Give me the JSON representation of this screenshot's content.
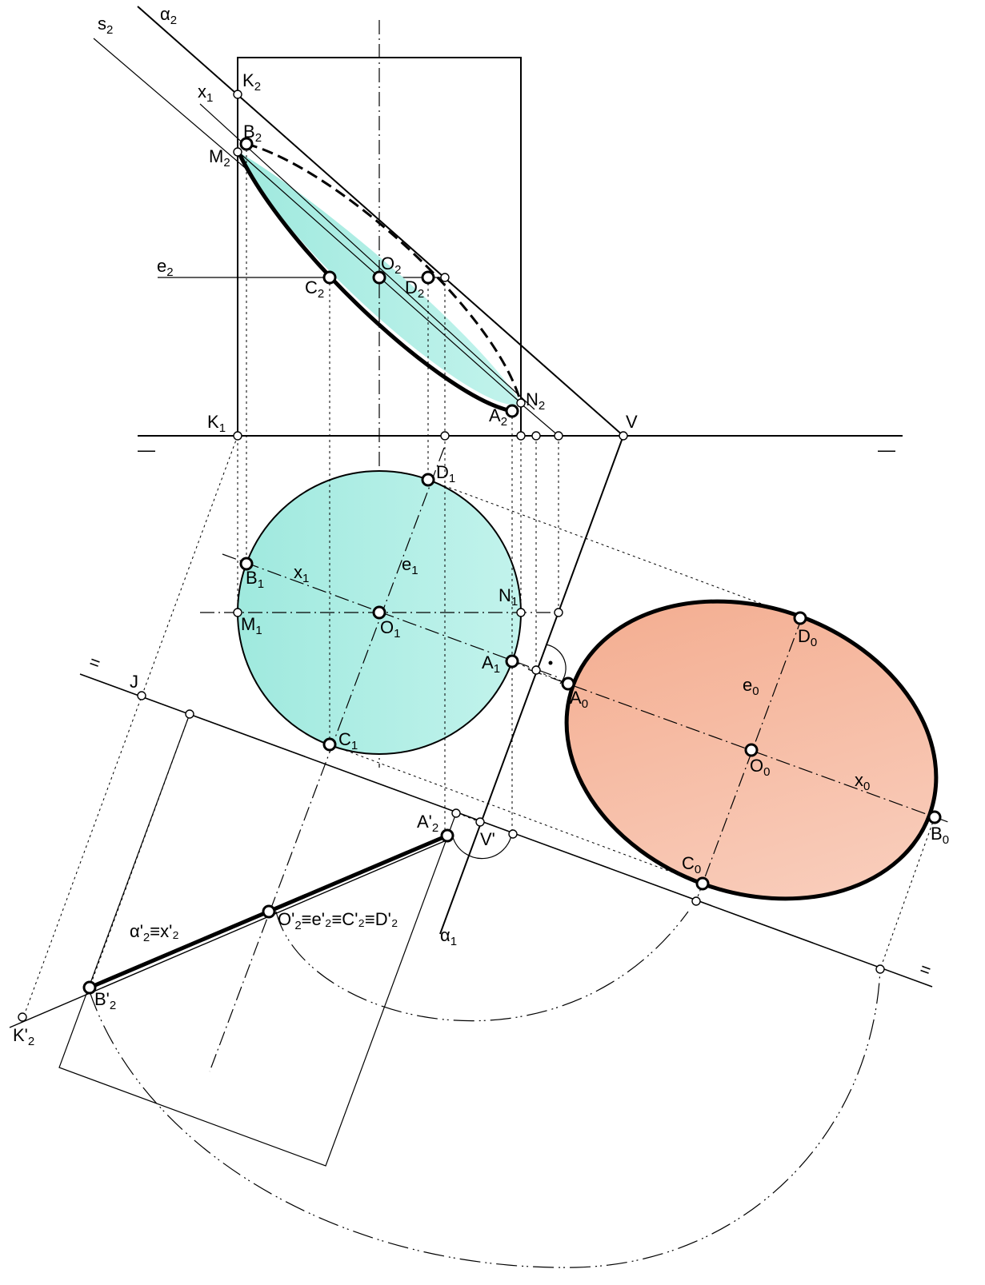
{
  "figure": {
    "labels": {
      "alpha2": {
        "main": "α",
        "sub": "2"
      },
      "s2": {
        "main": "s",
        "sub": "2"
      },
      "K2": {
        "main": "K",
        "sub": "2"
      },
      "x1_top": {
        "main": "x",
        "sub": "1"
      },
      "B2": {
        "main": "B",
        "sub": "2"
      },
      "M2": {
        "main": "M",
        "sub": "2"
      },
      "e2": {
        "main": "e",
        "sub": "2"
      },
      "O2": {
        "main": "O",
        "sub": "2"
      },
      "C2": {
        "main": "C",
        "sub": "2"
      },
      "D2": {
        "main": "D",
        "sub": "2"
      },
      "N2": {
        "main": "N",
        "sub": "2"
      },
      "A2": {
        "main": "A",
        "sub": "2"
      },
      "K1": {
        "main": "K",
        "sub": "1"
      },
      "V": {
        "main": "V",
        "sub": ""
      },
      "D1": {
        "main": "D",
        "sub": "1"
      },
      "B1": {
        "main": "B",
        "sub": "1"
      },
      "x1_mid": {
        "main": "x",
        "sub": "1"
      },
      "e1": {
        "main": "e",
        "sub": "1"
      },
      "N1": {
        "main": "N",
        "sub": "1"
      },
      "M1": {
        "main": "M",
        "sub": "1"
      },
      "O1": {
        "main": "O",
        "sub": "1"
      },
      "A1": {
        "main": "A",
        "sub": "1"
      },
      "C1": {
        "main": "C",
        "sub": "1"
      },
      "J": {
        "main": "J",
        "sub": ""
      },
      "A2p": {
        "main": "A'",
        "sub": "2"
      },
      "Vp": {
        "main": "V'",
        "sub": ""
      },
      "alpha1": {
        "main": "α",
        "sub": "1"
      },
      "O2p_eq": {
        "main": "O'",
        "sub": "2",
        "rest": "≡e'₂≡C'₂≡D'₂"
      },
      "alpha2p_eq": {
        "main": "α'",
        "sub": "2",
        "rest": "≡x'₂"
      },
      "B2p": {
        "main": "B'",
        "sub": "2"
      },
      "K2p": {
        "main": "K'",
        "sub": "2"
      },
      "D0": {
        "main": "D",
        "sub": "0"
      },
      "e0": {
        "main": "e",
        "sub": "0"
      },
      "A0": {
        "main": "A",
        "sub": "0"
      },
      "O0": {
        "main": "O",
        "sub": "0"
      },
      "x0": {
        "main": "x",
        "sub": "0"
      },
      "B0": {
        "main": "B",
        "sub": "0"
      },
      "C0": {
        "main": "C",
        "sub": "0"
      },
      "axis_mark_1": {
        "main": "—",
        "sub": ""
      },
      "axis_mark_2": {
        "main": "—",
        "sub": ""
      },
      "axis_mark_3": {
        "main": "=",
        "sub": ""
      },
      "axis_mark_4": {
        "main": "=",
        "sub": ""
      }
    },
    "colors": {
      "ellipse2_fill": "#a8ede2",
      "circle1_fill": "#aeede4",
      "ellipse0_fill": "#f5b49a",
      "stroke": "#000000"
    }
  }
}
